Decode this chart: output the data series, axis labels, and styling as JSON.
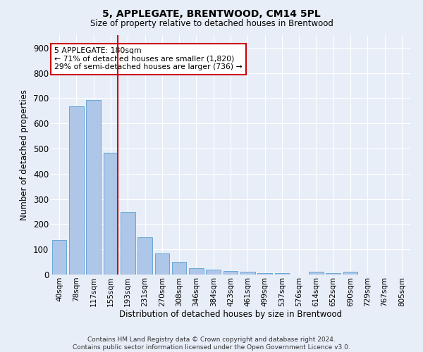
{
  "title": "5, APPLEGATE, BRENTWOOD, CM14 5PL",
  "subtitle": "Size of property relative to detached houses in Brentwood",
  "xlabel": "Distribution of detached houses by size in Brentwood",
  "ylabel": "Number of detached properties",
  "bar_labels": [
    "40sqm",
    "78sqm",
    "117sqm",
    "155sqm",
    "193sqm",
    "231sqm",
    "270sqm",
    "308sqm",
    "346sqm",
    "384sqm",
    "423sqm",
    "461sqm",
    "499sqm",
    "537sqm",
    "576sqm",
    "614sqm",
    "652sqm",
    "690sqm",
    "729sqm",
    "767sqm",
    "805sqm"
  ],
  "bar_values": [
    137,
    667,
    693,
    483,
    248,
    147,
    83,
    50,
    26,
    20,
    14,
    10,
    5,
    5,
    0,
    10,
    5,
    10,
    0,
    0,
    0
  ],
  "bar_color": "#aec6e8",
  "bar_edge_color": "#5a9fd4",
  "ylim": [
    0,
    950
  ],
  "yticks": [
    0,
    100,
    200,
    300,
    400,
    500,
    600,
    700,
    800,
    900
  ],
  "property_line_color": "#cc0000",
  "annotation_text": "5 APPLEGATE: 180sqm\n← 71% of detached houses are smaller (1,820)\n29% of semi-detached houses are larger (736) →",
  "annotation_box_color": "#ffffff",
  "annotation_box_edge": "#cc0000",
  "footer_line1": "Contains HM Land Registry data © Crown copyright and database right 2024.",
  "footer_line2": "Contains public sector information licensed under the Open Government Licence v3.0.",
  "background_color": "#e8eef8",
  "grid_color": "#ffffff"
}
